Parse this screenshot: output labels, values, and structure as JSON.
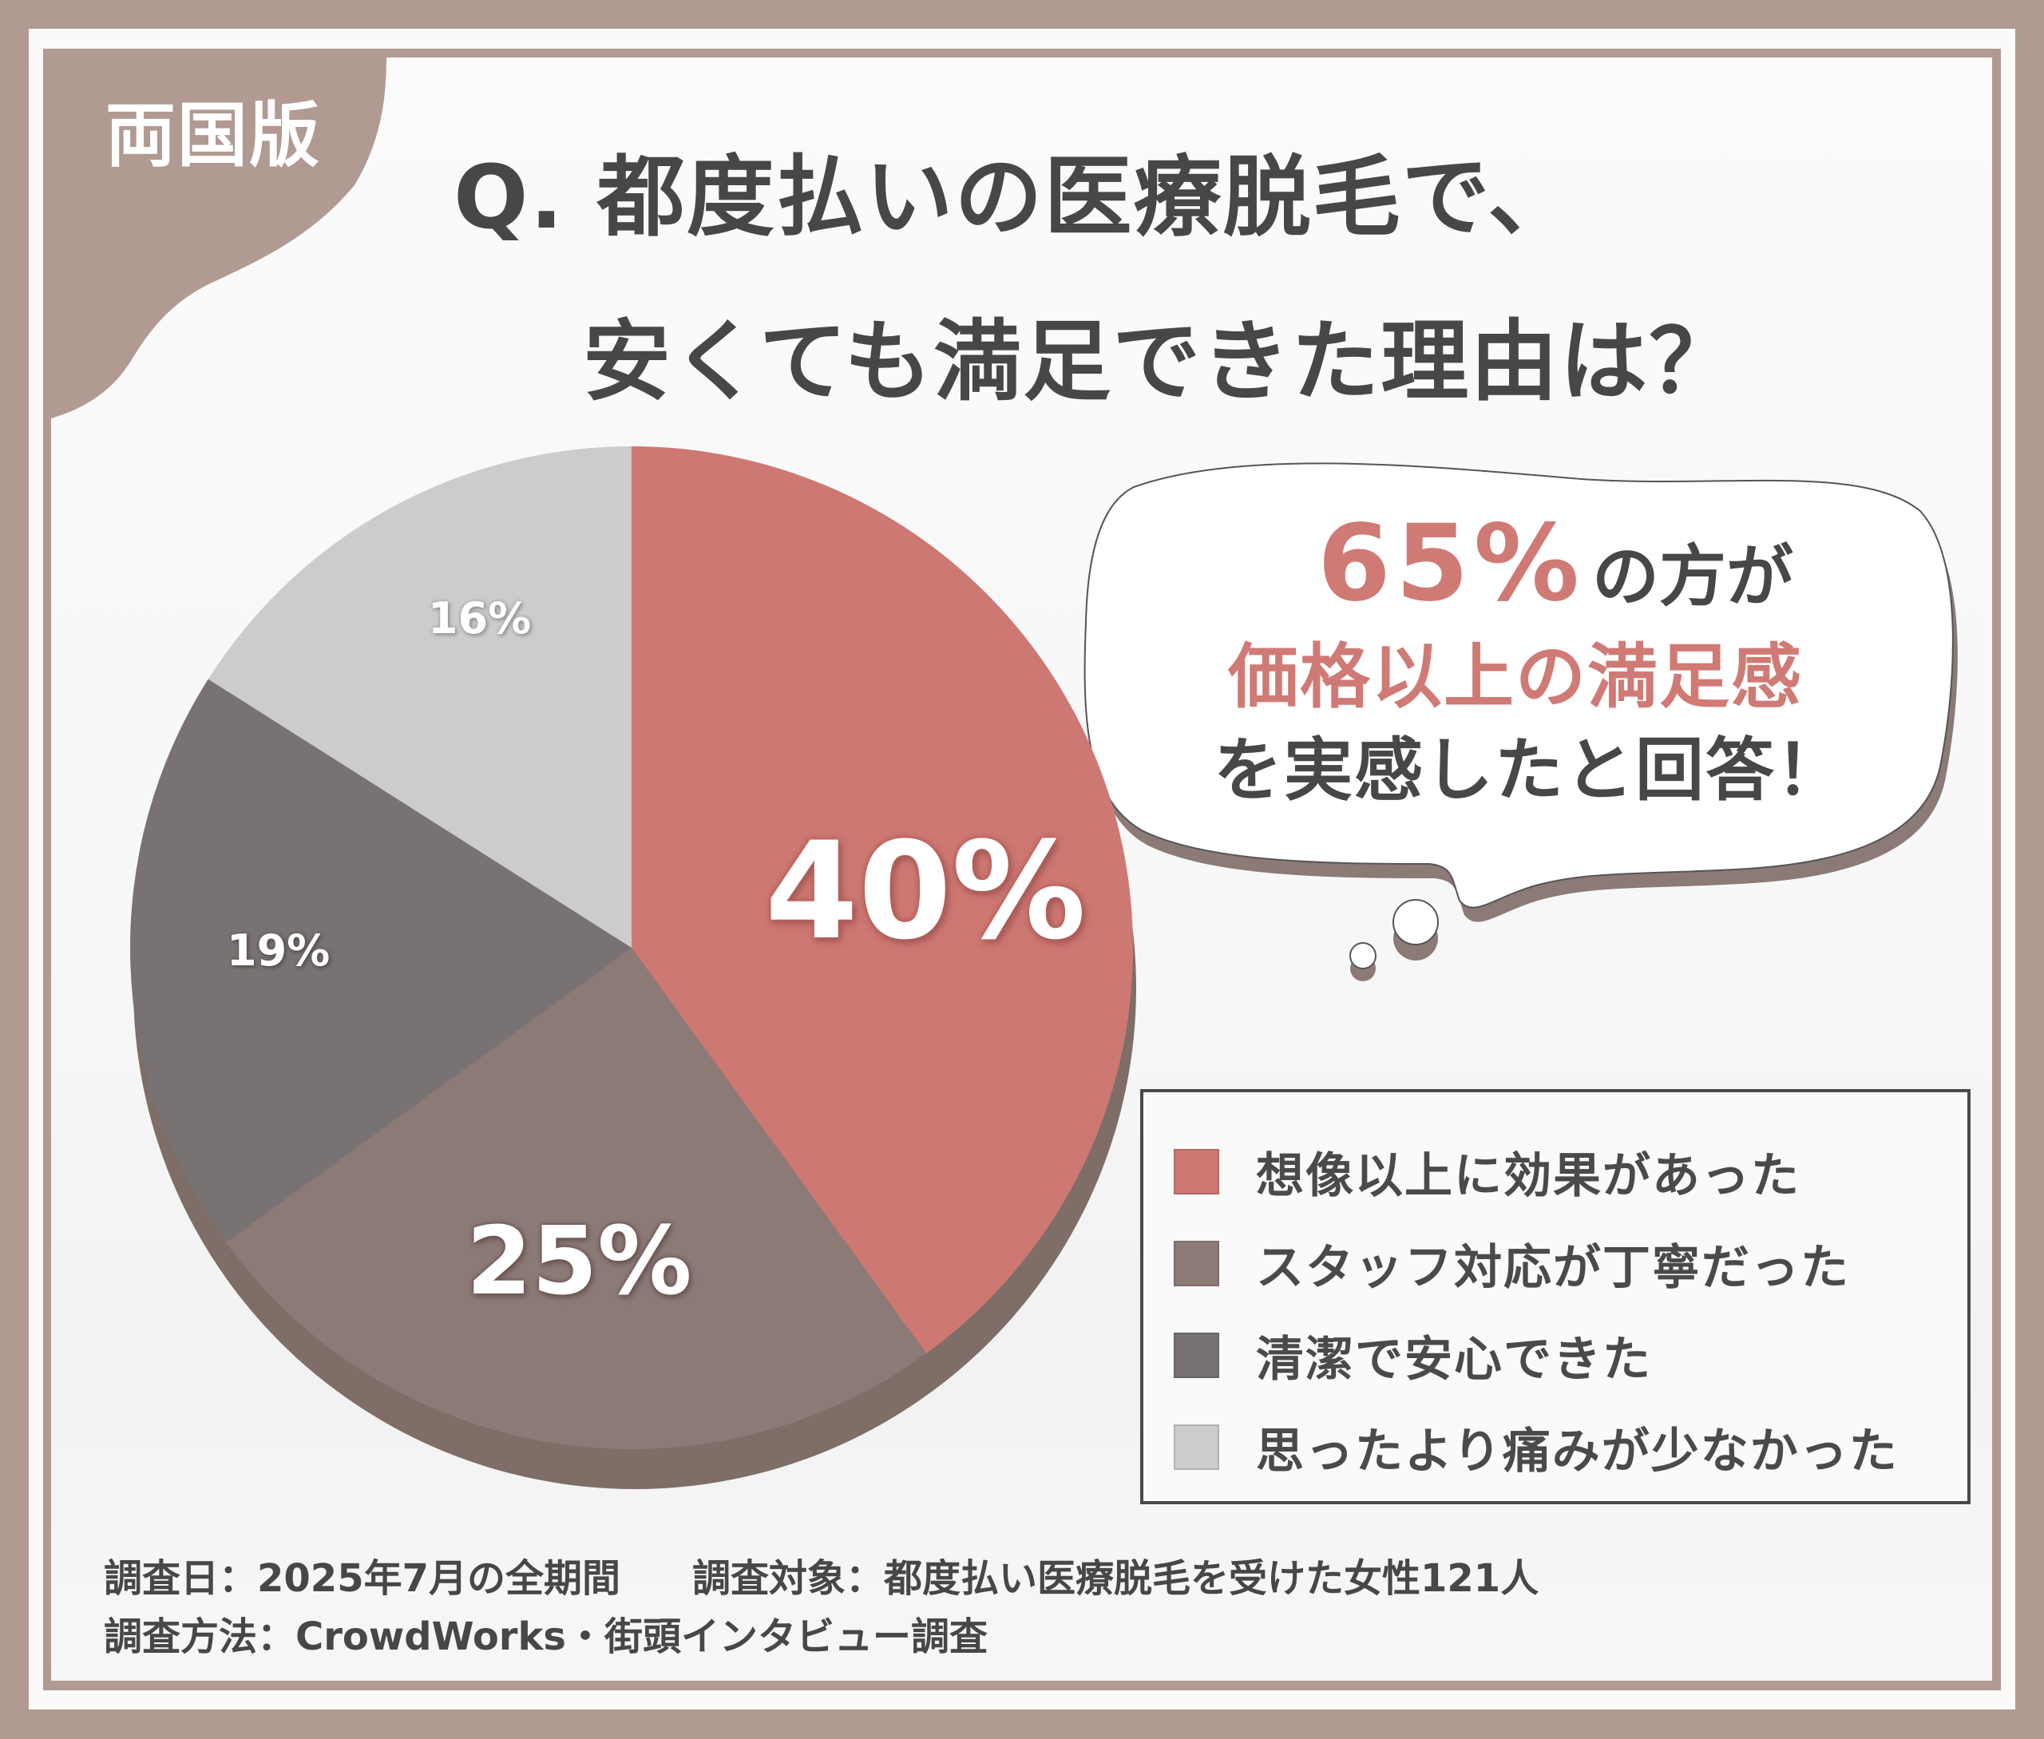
{
  "brand": {
    "label": "両国版",
    "color": "#B09A91"
  },
  "title": {
    "line1": "Q. 都度払いの医療脱毛で、",
    "line2": "安くても満足できた理由は？"
  },
  "callout": {
    "highlight_percent": "65%",
    "line1_suffix": "の方が",
    "line2": "価格以上の満足感",
    "line3": "を実感したと回答！",
    "accent_color": "#D07A75",
    "text_color": "#474747"
  },
  "chart_data": {
    "type": "pie",
    "title": "Q. 都度払いの医療脱毛で、安くても満足できた理由は？",
    "unit": "%",
    "start_angle_deg": 0,
    "direction": "clockwise",
    "style": "3d-shadow",
    "categories": [
      "想像以上に効果があった",
      "スタッフ対応が丁寧だった",
      "清潔で安心できた",
      "思ったより痛みが少なかった"
    ],
    "values": [
      40,
      25,
      19,
      16
    ],
    "labels": [
      "40%",
      "25%",
      "19%",
      "16%"
    ],
    "colors": [
      "#CE7873",
      "#8C7A77",
      "#787372",
      "#CCCCCC"
    ],
    "shadow_color": "#7E6E67",
    "legend_position": "right-bottom"
  },
  "legend": {
    "items": [
      {
        "label": "想像以上に効果があった",
        "color": "#CE7873"
      },
      {
        "label": "スタッフ対応が丁寧だった",
        "color": "#8C7A77"
      },
      {
        "label": "清潔で安心できた",
        "color": "#787372"
      },
      {
        "label": "思ったより痛みが少なかった",
        "color": "#CCCCCC"
      }
    ]
  },
  "footer": {
    "survey_date": "調査日：2025年7月の全期間",
    "survey_target": "調査対象：都度払い医療脱毛を受けた女性121人",
    "survey_method": "調査方法：CrowdWorks・街頭インタビュー調査"
  }
}
